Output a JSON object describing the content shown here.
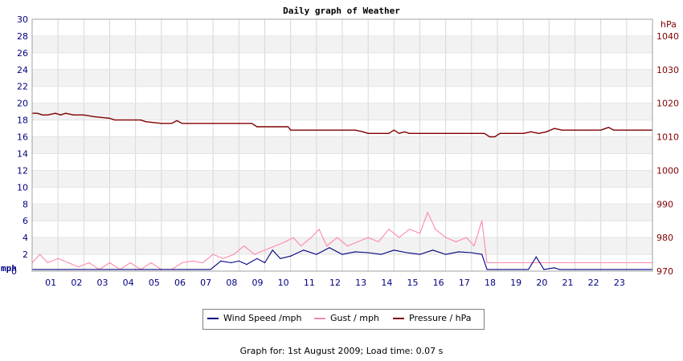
{
  "chart_data": {
    "type": "line",
    "title": "Daily graph of Weather",
    "x_ticks": [
      "01",
      "02",
      "03",
      "04",
      "05",
      "06",
      "07",
      "08",
      "09",
      "10",
      "11",
      "12",
      "13",
      "14",
      "15",
      "16",
      "17",
      "18",
      "19",
      "20",
      "21",
      "22",
      "23"
    ],
    "xlim": [
      0,
      24
    ],
    "y_left": {
      "label": "mph",
      "ylim": [
        0,
        30
      ],
      "ticks": [
        "0",
        "2",
        "4",
        "6",
        "8",
        "10",
        "12",
        "14",
        "16",
        "18",
        "20",
        "22",
        "24",
        "26",
        "28",
        "30"
      ],
      "color": "#000080"
    },
    "y_right": {
      "label": "hPa",
      "ylim": [
        970,
        1045
      ],
      "ticks": [
        "970",
        "980",
        "990",
        "1000",
        "1010",
        "1020",
        "1030",
        "1040"
      ],
      "color": "#800000"
    },
    "grid": true,
    "legend_position": "bottom",
    "series": [
      {
        "name": "Wind Speed /mph",
        "axis": "left",
        "color": "#000080",
        "x": [
          0,
          6.9,
          7.3,
          7.7,
          8.0,
          8.3,
          8.7,
          9.0,
          9.3,
          9.6,
          10.0,
          10.5,
          11.0,
          11.5,
          12.0,
          12.5,
          13.0,
          13.5,
          14.0,
          14.5,
          15.0,
          15.5,
          16.0,
          16.5,
          17.0,
          17.4,
          17.6,
          19.2,
          19.5,
          19.8,
          20.2,
          20.4,
          24
        ],
        "values": [
          0.2,
          0.2,
          1.2,
          1.0,
          1.2,
          0.8,
          1.5,
          1.0,
          2.5,
          1.5,
          1.8,
          2.5,
          2.0,
          2.8,
          2.0,
          2.3,
          2.2,
          2.0,
          2.5,
          2.2,
          2.0,
          2.5,
          2.0,
          2.3,
          2.2,
          2.0,
          0.2,
          0.2,
          1.7,
          0.2,
          0.4,
          0.2,
          0.2
        ]
      },
      {
        "name": "Gust / mph",
        "axis": "left",
        "color": "#ff88aa",
        "x": [
          0,
          0.3,
          0.6,
          1.0,
          1.4,
          1.8,
          2.2,
          2.6,
          3.0,
          3.4,
          3.8,
          4.2,
          4.6,
          5.0,
          5.4,
          5.8,
          6.2,
          6.6,
          7.0,
          7.4,
          7.8,
          8.2,
          8.6,
          9.0,
          9.4,
          9.8,
          10.1,
          10.4,
          10.8,
          11.1,
          11.4,
          11.8,
          12.2,
          12.6,
          13.0,
          13.4,
          13.8,
          14.2,
          14.6,
          15.0,
          15.3,
          15.6,
          16.0,
          16.4,
          16.8,
          17.1,
          17.4,
          17.6,
          24
        ],
        "values": [
          1.0,
          2.0,
          1.0,
          1.5,
          1.0,
          0.5,
          1.0,
          0.2,
          1.0,
          0.2,
          1.0,
          0.2,
          1.0,
          0.2,
          0.2,
          1.0,
          1.2,
          1.0,
          2.0,
          1.5,
          2.0,
          3.0,
          2.0,
          2.5,
          3.0,
          3.5,
          4.0,
          3.0,
          4.0,
          5.0,
          3.0,
          4.0,
          3.0,
          3.5,
          4.0,
          3.5,
          5.0,
          4.0,
          5.0,
          4.5,
          7.0,
          5.0,
          4.0,
          3.5,
          4.0,
          3.0,
          6.0,
          1.0,
          1.0
        ]
      },
      {
        "name": "Pressure / hPa",
        "axis": "right",
        "color": "#800000",
        "x": [
          0,
          0.2,
          0.4,
          0.6,
          0.9,
          1.1,
          1.3,
          1.6,
          2.0,
          2.4,
          3.0,
          3.2,
          4.2,
          4.4,
          5.0,
          5.4,
          5.6,
          5.8,
          6.5,
          7.5,
          8.5,
          8.7,
          9.5,
          9.9,
          10.0,
          10.5,
          11.5,
          12.5,
          12.8,
          13.0,
          13.8,
          14.0,
          14.2,
          14.4,
          14.6,
          15.0,
          16.0,
          17.0,
          17.5,
          17.7,
          17.9,
          18.1,
          19.0,
          19.3,
          19.6,
          19.9,
          20.2,
          20.5,
          21.0,
          22.0,
          22.3,
          22.5,
          24
        ],
        "values": [
          1017.0,
          1017.0,
          1016.5,
          1016.5,
          1017.0,
          1016.5,
          1017.0,
          1016.5,
          1016.5,
          1016.0,
          1015.5,
          1015.0,
          1015.0,
          1014.5,
          1014.0,
          1014.0,
          1014.8,
          1014.0,
          1014.0,
          1014.0,
          1014.0,
          1013.0,
          1013.0,
          1013.0,
          1012.0,
          1012.0,
          1012.0,
          1012.0,
          1011.5,
          1011.0,
          1011.0,
          1012.0,
          1011.0,
          1011.5,
          1011.0,
          1011.0,
          1011.0,
          1011.0,
          1011.0,
          1010.0,
          1010.0,
          1011.0,
          1011.0,
          1011.5,
          1011.0,
          1011.5,
          1012.5,
          1012.0,
          1012.0,
          1012.0,
          1012.8,
          1012.0,
          1012.0
        ]
      }
    ]
  },
  "legend": [
    {
      "label": "Wind Speed /mph",
      "color": "#000080"
    },
    {
      "label": "Gust / mph",
      "color": "#ff88aa"
    },
    {
      "label": "Pressure / hPa",
      "color": "#800000"
    }
  ],
  "footer": "Graph for: 1st August 2009; Load time: 0.07 s"
}
